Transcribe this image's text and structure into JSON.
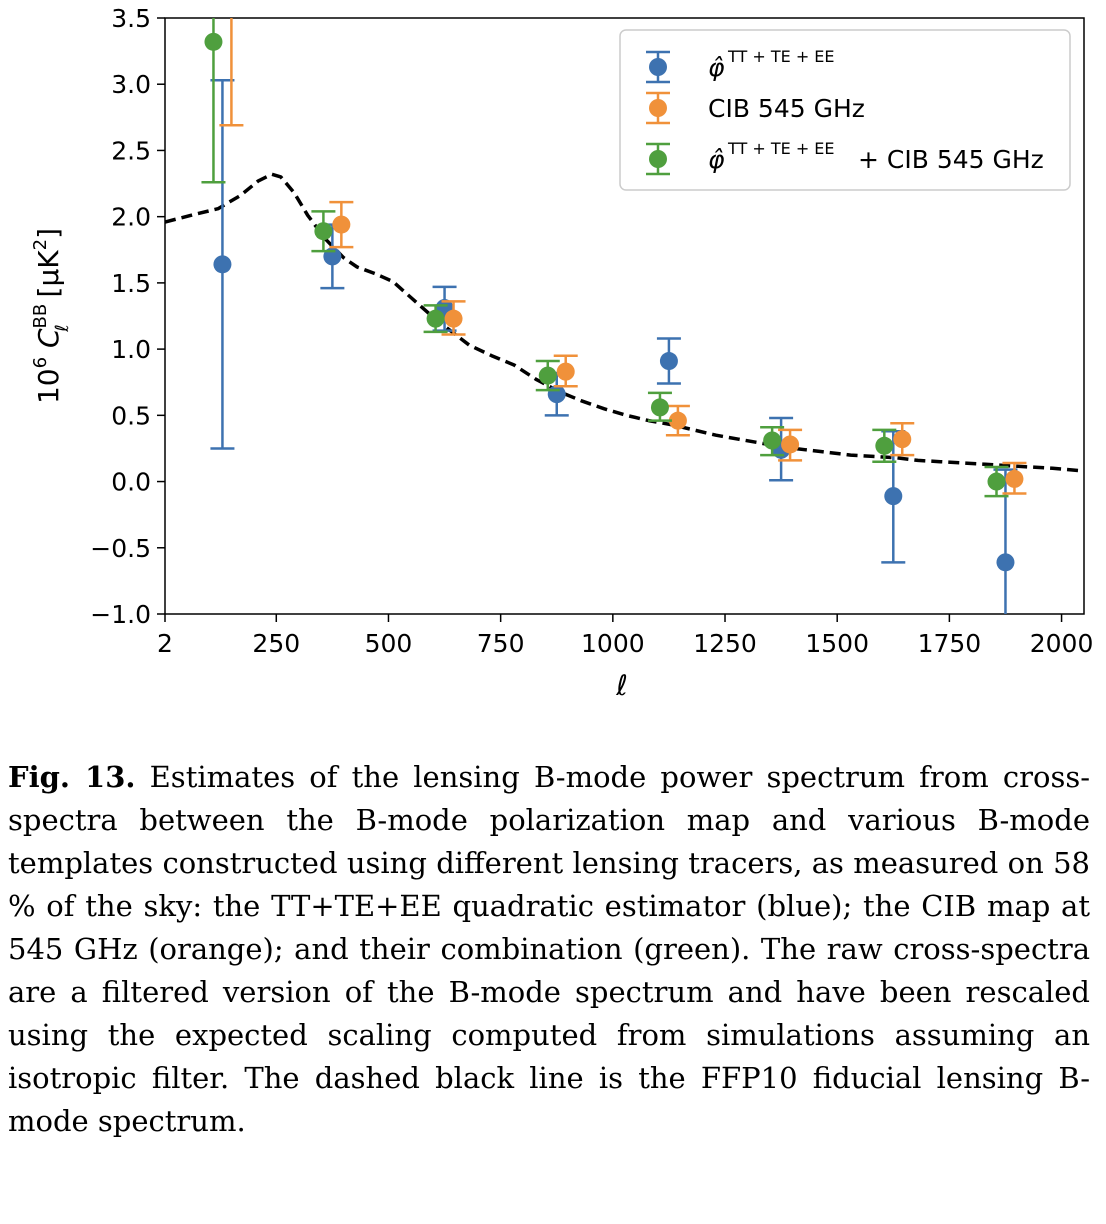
{
  "chart_data": {
    "type": "scatter",
    "xlabel": "ℓ",
    "ylabel": "10⁶ C_ℓ^BB [μK²]",
    "xlim": [
      2,
      2050
    ],
    "ylim": [
      -1.0,
      3.5
    ],
    "x_ticks": [
      "2",
      "250",
      "500",
      "750",
      "1000",
      "1250",
      "1500",
      "1750",
      "2000"
    ],
    "y_ticks": [
      "−1.0",
      "−0.5",
      "0.0",
      "0.5",
      "1.0",
      "1.5",
      "2.0",
      "2.5",
      "3.0",
      "3.5"
    ],
    "legend_position": "top-right",
    "series": [
      {
        "name": "φ̂^{TT+TE+EE}",
        "color": "#3d72b0",
        "points": [
          {
            "x": 130,
            "y": 1.64,
            "lo": 0.25,
            "hi": 3.03
          },
          {
            "x": 375,
            "y": 1.7,
            "lo": 1.46,
            "hi": 1.94
          },
          {
            "x": 625,
            "y": 1.31,
            "lo": 1.14,
            "hi": 1.47
          },
          {
            "x": 875,
            "y": 0.66,
            "lo": 0.5,
            "hi": 0.82
          },
          {
            "x": 1125,
            "y": 0.91,
            "lo": 0.74,
            "hi": 1.08
          },
          {
            "x": 1375,
            "y": 0.24,
            "lo": 0.01,
            "hi": 0.48
          },
          {
            "x": 1625,
            "y": -0.11,
            "lo": -0.61,
            "hi": 0.38
          },
          {
            "x": 1875,
            "y": -0.61,
            "lo": -1.05,
            "hi": 0.09
          }
        ]
      },
      {
        "name": "CIB 545 GHz",
        "color": "#f0913a",
        "points": [
          {
            "x": 150,
            "y": 3.7,
            "lo": 2.69,
            "hi": 4.5
          },
          {
            "x": 395,
            "y": 1.94,
            "lo": 1.77,
            "hi": 2.11
          },
          {
            "x": 645,
            "y": 1.23,
            "lo": 1.11,
            "hi": 1.36
          },
          {
            "x": 895,
            "y": 0.83,
            "lo": 0.72,
            "hi": 0.95
          },
          {
            "x": 1145,
            "y": 0.46,
            "lo": 0.35,
            "hi": 0.57
          },
          {
            "x": 1395,
            "y": 0.28,
            "lo": 0.16,
            "hi": 0.39
          },
          {
            "x": 1645,
            "y": 0.32,
            "lo": 0.2,
            "hi": 0.44
          },
          {
            "x": 1895,
            "y": 0.02,
            "lo": -0.09,
            "hi": 0.14
          }
        ]
      },
      {
        "name": "φ̂^{TT+TE+EE} + CIB 545 GHz",
        "color": "#4f9f3e",
        "points": [
          {
            "x": 110,
            "y": 3.32,
            "lo": 2.26,
            "hi": 4.5
          },
          {
            "x": 355,
            "y": 1.89,
            "lo": 1.74,
            "hi": 2.04
          },
          {
            "x": 605,
            "y": 1.23,
            "lo": 1.13,
            "hi": 1.33
          },
          {
            "x": 855,
            "y": 0.8,
            "lo": 0.69,
            "hi": 0.91
          },
          {
            "x": 1105,
            "y": 0.56,
            "lo": 0.46,
            "hi": 0.67
          },
          {
            "x": 1355,
            "y": 0.31,
            "lo": 0.2,
            "hi": 0.41
          },
          {
            "x": 1605,
            "y": 0.27,
            "lo": 0.15,
            "hi": 0.39
          },
          {
            "x": 1855,
            "y": 0.0,
            "lo": -0.11,
            "hi": 0.11
          }
        ]
      }
    ],
    "fiducial_line": {
      "style": "dashed",
      "color": "#000000",
      "x": [
        2,
        60,
        120,
        170,
        210,
        240,
        260,
        290,
        320,
        360,
        400,
        430,
        470,
        510,
        550,
        590,
        630,
        680,
        730,
        780,
        830,
        880,
        930,
        980,
        1030,
        1080,
        1130,
        1180,
        1230,
        1280,
        1330,
        1380,
        1430,
        1480,
        1530,
        1580,
        1630,
        1680,
        1730,
        1780,
        1830,
        1880,
        1930,
        1980,
        2050
      ],
      "y": [
        1.96,
        2.01,
        2.06,
        2.16,
        2.27,
        2.32,
        2.3,
        2.18,
        2.01,
        1.83,
        1.69,
        1.62,
        1.57,
        1.51,
        1.39,
        1.27,
        1.16,
        1.03,
        0.95,
        0.88,
        0.77,
        0.68,
        0.61,
        0.55,
        0.5,
        0.46,
        0.43,
        0.39,
        0.35,
        0.32,
        0.29,
        0.26,
        0.24,
        0.22,
        0.2,
        0.19,
        0.18,
        0.16,
        0.15,
        0.14,
        0.13,
        0.12,
        0.11,
        0.1,
        0.08
      ]
    }
  },
  "legend": {
    "entry1_main": "φ̂",
    "entry1_sup": "TT + TE + EE",
    "entry2": "CIB 545 GHz",
    "entry3_main": "φ̂",
    "entry3_sup": "TT + TE + EE",
    "entry3_tail": "+ CIB 545 GHz"
  },
  "caption": {
    "label": "Fig. 13.",
    "text": "Estimates of the lensing B-mode power spectrum from cross-spectra between the B-mode polarization map and various B-mode templates constructed using different lensing tracers, as measured on 58 % of the sky: the TT+TE+EE quadratic estimator (blue); the CIB map at 545 GHz (orange); and their combination (green). The raw cross-spectra are a filtered version of the B-mode spectrum and have been rescaled using the expected scaling computed from simulations assuming an isotropic filter. The dashed black line is the FFP10 fiducial lensing B-mode spectrum."
  }
}
